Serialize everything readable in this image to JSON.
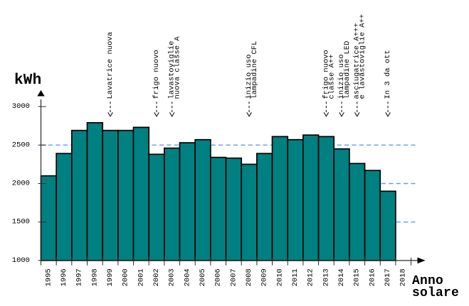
{
  "chart_data": {
    "type": "bar",
    "ylabel": "kWh",
    "xlabel": "Anno\nsolare",
    "categories": [
      "1995",
      "1996",
      "1997",
      "1998",
      "1999",
      "2000",
      "2001",
      "2002",
      "2003",
      "2004",
      "2005",
      "2006",
      "2007",
      "2008",
      "2009",
      "2010",
      "2011",
      "2012",
      "2013",
      "2014",
      "2015",
      "2016",
      "2017",
      "2018"
    ],
    "values": [
      2100,
      2390,
      2690,
      2790,
      2690,
      2690,
      2730,
      2380,
      2460,
      2530,
      2570,
      2340,
      2330,
      2250,
      2390,
      2610,
      2570,
      2630,
      2610,
      2450,
      2260,
      2170,
      1900,
      null
    ],
    "ylim": [
      1000,
      3000
    ],
    "yticks": [
      1000,
      1500,
      2000,
      2500,
      3000
    ],
    "gridlines": [
      1500,
      2000,
      2500
    ],
    "grid_style": "dashed",
    "legend": "none",
    "annotations": [
      {
        "lines": [
          "Lavatrice nuova"
        ],
        "target_year": "1999"
      },
      {
        "lines": [
          "frigo nuovo"
        ],
        "target_year": "2002"
      },
      {
        "lines": [
          "lavastoviglie",
          "nuova classe A"
        ],
        "target_year": "2003"
      },
      {
        "lines": [
          "inizio uso",
          "lampadine CFL"
        ],
        "target_year": "2008"
      },
      {
        "lines": [
          "frigo nuovo",
          "classe A++"
        ],
        "target_year": "2013"
      },
      {
        "lines": [
          "inizio uso",
          "lampadine LED"
        ],
        "target_year": "2014"
      },
      {
        "lines": [
          "asciugatrice A+++",
          "e lavastoviglie A++"
        ],
        "target_year": "2015"
      },
      {
        "lines": [
          "In 3 da ott"
        ],
        "target_year": "2017"
      }
    ],
    "colors": {
      "bar_fill": "#008080",
      "bar_stroke": "#000000",
      "grid": "#5f9df6",
      "axis": "#2b2b2b",
      "text": "#000000"
    }
  }
}
